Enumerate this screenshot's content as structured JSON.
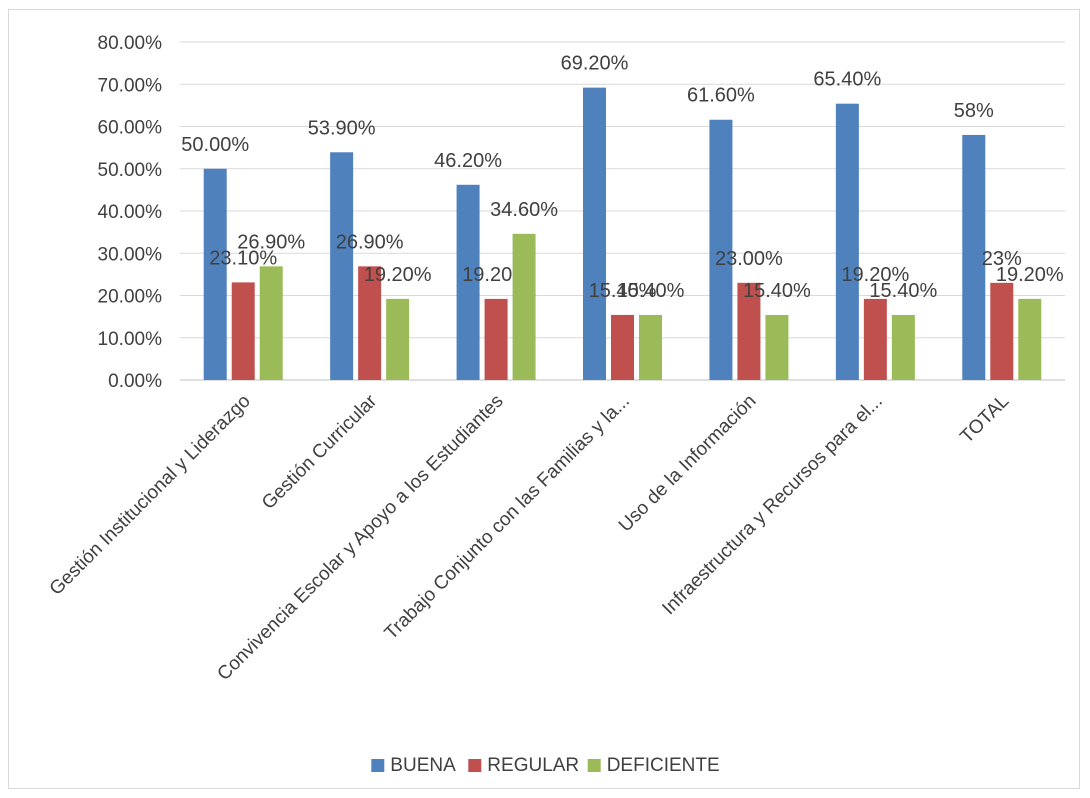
{
  "chart_data": {
    "type": "bar",
    "categories": [
      "Gestión Institucional y Liderazgo",
      "Gestión Curricular",
      "Convivencia Escolar y Apoyo a los Estudiantes",
      "Trabajo Conjunto con las Familias y la...",
      "Uso de la Información",
      "Infraestructura y Recursos para el...",
      "TOTAL"
    ],
    "series": [
      {
        "name": "BUENA",
        "color": "#4f81bd",
        "values": [
          0.5,
          0.539,
          0.462,
          0.692,
          0.616,
          0.654,
          0.58
        ],
        "labels": [
          "50.00%",
          "53.90%",
          "46.20%",
          "69.20%",
          "61.60%",
          "65.40%",
          "58%"
        ]
      },
      {
        "name": "REGULAR",
        "color": "#c0504d",
        "values": [
          0.231,
          0.269,
          0.192,
          0.154,
          0.23,
          0.192,
          0.23
        ],
        "labels": [
          "23.10%",
          "26.90%",
          "19.20%",
          "15.40%",
          "23.00%",
          "19.20%",
          "23%"
        ]
      },
      {
        "name": "DEFICIENTE",
        "color": "#9bbb59",
        "values": [
          0.269,
          0.192,
          0.346,
          0.154,
          0.154,
          0.154,
          0.192
        ],
        "labels": [
          "26.90%",
          "19.20%",
          "34.60%",
          "15.40%",
          "15.40%",
          "15.40%",
          "19.20%"
        ]
      }
    ],
    "ylim": [
      0,
      0.8
    ],
    "yticks": [
      "0.00%",
      "10.00%",
      "20.00%",
      "30.00%",
      "40.00%",
      "50.00%",
      "60.00%",
      "70.00%",
      "80.00%"
    ],
    "grid": true,
    "legend_position": "bottom",
    "title": "",
    "xlabel": "",
    "ylabel": ""
  }
}
